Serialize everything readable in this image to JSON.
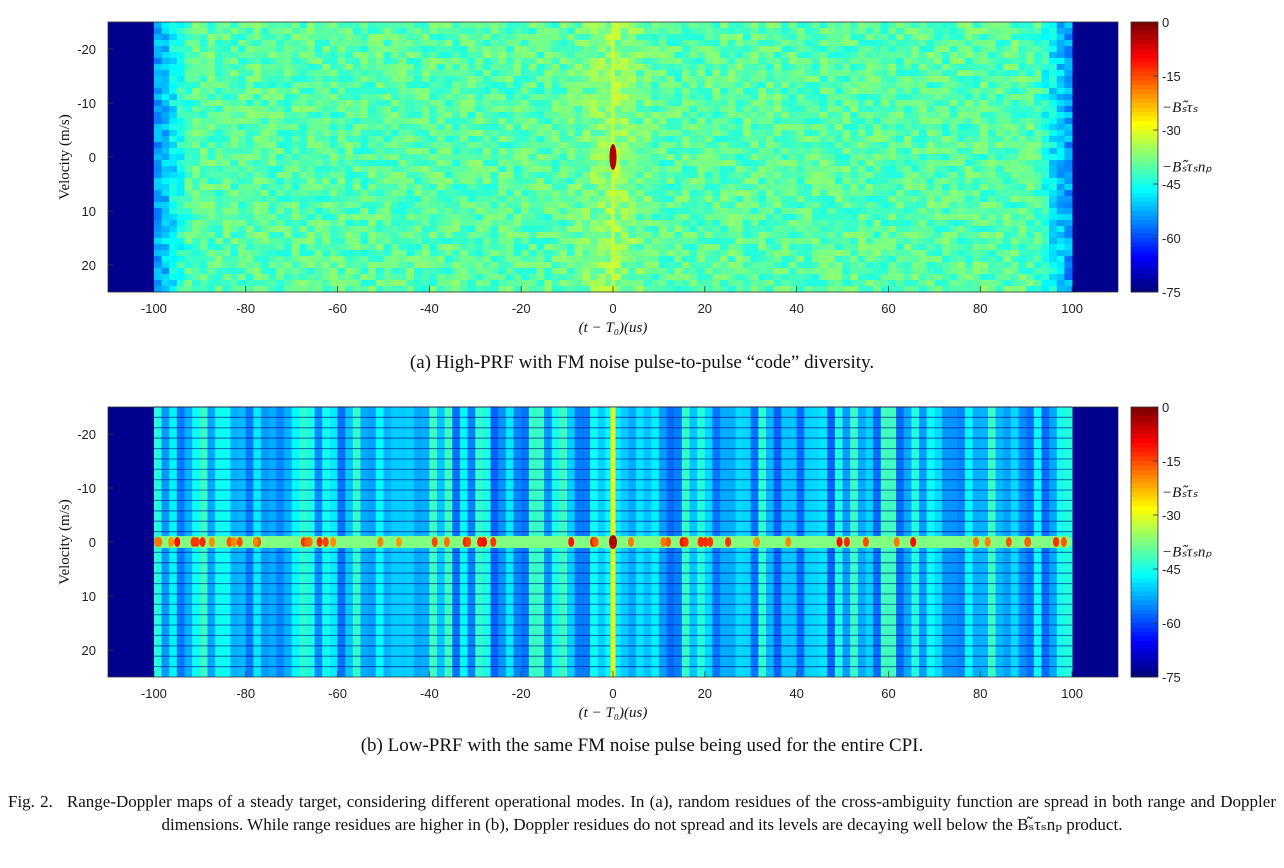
{
  "panels": [
    {
      "id": "a",
      "caption": "(a) High-PRF with FM noise pulse-to-pulse “code” diversity.",
      "chart_data": {
        "type": "heatmap",
        "xlabel": "(t − T₀)(us)",
        "ylabel": "Velocity  (m/s)",
        "xlim": [
          -110,
          110
        ],
        "ylim": [
          -25,
          25
        ],
        "xticks": [
          "-100",
          "-80",
          "-60",
          "-40",
          "-20",
          "0",
          "20",
          "40",
          "60",
          "80",
          "100"
        ],
        "yticks": [
          "-20",
          "-10",
          "0",
          "10",
          "20"
        ],
        "colorbar": {
          "min": -75,
          "max": 0,
          "ticks": [
            "0",
            "-15",
            "-30",
            "-45",
            "-60",
            "-75"
          ],
          "annotations": [
            "−Bₛ̃τₛ",
            "−Bₛ̃τₛnₚ"
          ]
        },
        "colormap": "jet",
        "pattern": "noise residues spread in range and Doppler, peak at (0,0)"
      }
    },
    {
      "id": "b",
      "caption": "(b) Low-PRF with the same FM noise pulse being used for the entire CPI.",
      "chart_data": {
        "type": "heatmap",
        "xlabel": "(t − T₀)(us)",
        "ylabel": "Velocity  (m/s)",
        "xlim": [
          -110,
          110
        ],
        "ylim": [
          -25,
          25
        ],
        "xticks": [
          "-100",
          "-80",
          "-60",
          "-40",
          "-20",
          "0",
          "20",
          "40",
          "60",
          "80",
          "100"
        ],
        "yticks": [
          "-20",
          "-10",
          "0",
          "10",
          "20"
        ],
        "colorbar": {
          "min": -75,
          "max": 0,
          "ticks": [
            "0",
            "-15",
            "-30",
            "-45",
            "-60",
            "-75"
          ],
          "annotations": [
            "−Bₛ̃τₛ",
            "−Bₛ̃τₛnₚ"
          ]
        },
        "colormap": "jet",
        "pattern": "vertical range residue stripes, Doppler residues confined to velocity 0"
      }
    }
  ],
  "figure_caption": {
    "label": "Fig. 2.",
    "text": "Range-Doppler maps of a steady target, considering different operational modes. In (a), random residues of the cross-ambiguity function are spread in both range and Doppler dimensions. While range residues are higher in (b), Doppler residues do not spread and its levels are decaying well below the Bₛ̃τₛnₚ product."
  }
}
